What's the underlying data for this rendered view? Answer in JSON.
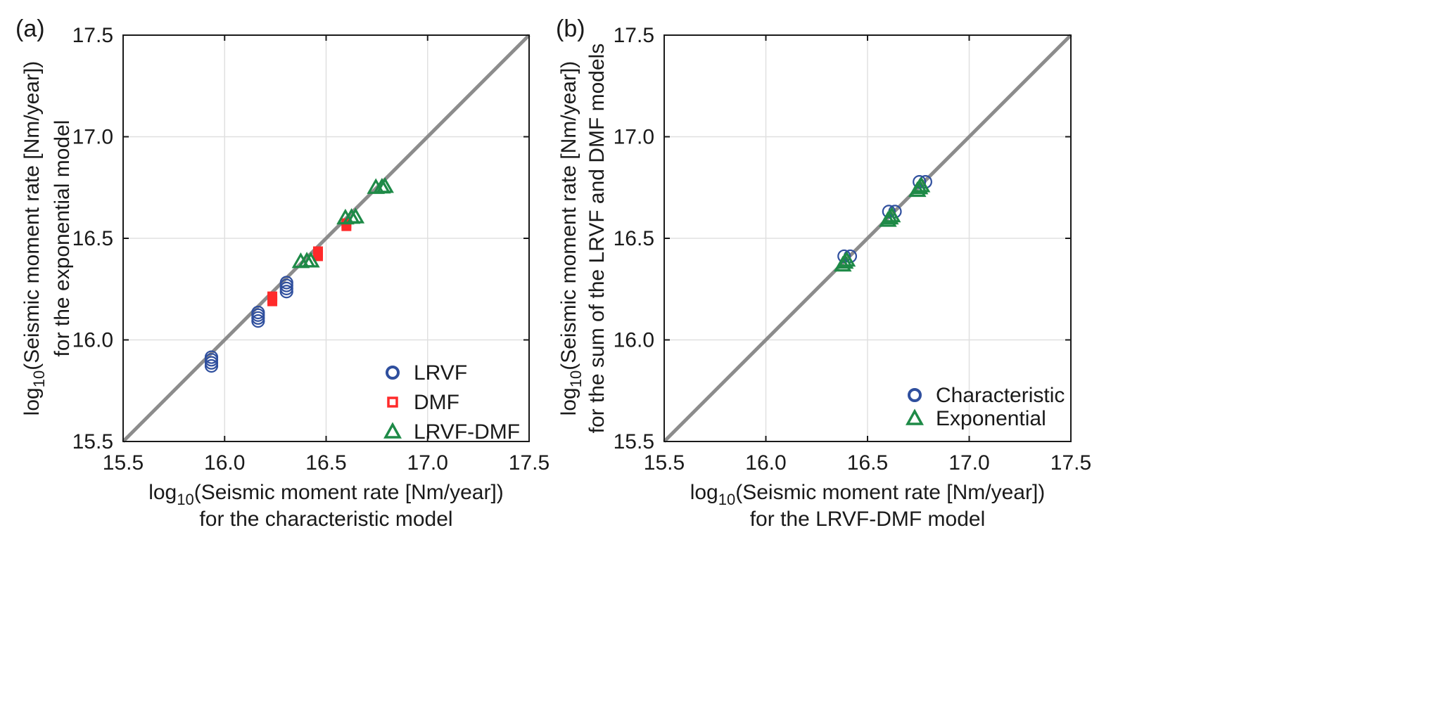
{
  "chart_data": [
    {
      "type": "scatter",
      "panel_label": "(a)",
      "title": "",
      "xlabel_line1": "log10(Seismic moment rate [Nm/year])",
      "xlabel_line2": "for the characteristic model",
      "ylabel_line1": "log10(Seismic moment rate [Nm/year])",
      "ylabel_line2": "for the exponential model",
      "xlim": [
        15.5,
        17.5
      ],
      "ylim": [
        15.5,
        17.5
      ],
      "xticks": [
        "15.5",
        "16.0",
        "16.5",
        "17.0",
        "17.5"
      ],
      "yticks": [
        "15.5",
        "16.0",
        "16.5",
        "17.0",
        "17.5"
      ],
      "grid": true,
      "reference_line": "y = x",
      "legend_position": "bottom-right",
      "series": [
        {
          "name": "LRVF",
          "marker": "circle",
          "color": "#2f4f9e",
          "points": [
            [
              15.935,
              15.872
            ],
            [
              15.935,
              15.887
            ],
            [
              15.935,
              15.902
            ],
            [
              15.935,
              15.915
            ],
            [
              16.165,
              16.093
            ],
            [
              16.165,
              16.108
            ],
            [
              16.165,
              16.122
            ],
            [
              16.165,
              16.135
            ],
            [
              16.305,
              16.238
            ],
            [
              16.305,
              16.253
            ],
            [
              16.305,
              16.268
            ],
            [
              16.305,
              16.282
            ]
          ]
        },
        {
          "name": "DMF",
          "marker": "square",
          "color": "#ff2a2a",
          "points": [
            [
              16.235,
              16.19
            ],
            [
              16.235,
              16.202
            ],
            [
              16.235,
              16.214
            ],
            [
              16.46,
              16.412
            ],
            [
              16.46,
              16.424
            ],
            [
              16.46,
              16.436
            ],
            [
              16.6,
              16.56
            ],
            [
              16.6,
              16.574
            ]
          ]
        },
        {
          "name": "LRVF-DMF",
          "marker": "triangle",
          "color": "#1e8a47",
          "points": [
            [
              16.375,
              16.385
            ],
            [
              16.405,
              16.388
            ],
            [
              16.425,
              16.388
            ],
            [
              16.595,
              16.6
            ],
            [
              16.625,
              16.603
            ],
            [
              16.645,
              16.605
            ],
            [
              16.745,
              16.75
            ],
            [
              16.775,
              16.752
            ],
            [
              16.79,
              16.755
            ]
          ]
        }
      ]
    },
    {
      "type": "scatter",
      "panel_label": "(b)",
      "title": "",
      "xlabel_line1": "log10(Seismic moment rate [Nm/year])",
      "xlabel_line2": "for the LRVF-DMF model",
      "ylabel_line1": "log10(Seismic moment rate [Nm/year])",
      "ylabel_line2": "for the sum of the LRVF and DMF models",
      "xlim": [
        15.5,
        17.5
      ],
      "ylim": [
        15.5,
        17.5
      ],
      "xticks": [
        "15.5",
        "16.0",
        "16.5",
        "17.0",
        "17.5"
      ],
      "yticks": [
        "15.5",
        "16.0",
        "16.5",
        "17.0",
        "17.5"
      ],
      "grid": true,
      "reference_line": "y = x",
      "legend_position": "bottom-right",
      "series": [
        {
          "name": "Characteristic",
          "marker": "circle",
          "color": "#2f4f9e",
          "points": [
            [
              16.385,
              16.412
            ],
            [
              16.415,
              16.412
            ],
            [
              16.605,
              16.632
            ],
            [
              16.635,
              16.632
            ],
            [
              16.755,
              16.778
            ],
            [
              16.785,
              16.778
            ]
          ]
        },
        {
          "name": "Exponential",
          "marker": "triangle",
          "color": "#1e8a47",
          "points": [
            [
              16.378,
              16.368
            ],
            [
              16.388,
              16.382
            ],
            [
              16.398,
              16.392
            ],
            [
              16.6,
              16.588
            ],
            [
              16.61,
              16.6
            ],
            [
              16.62,
              16.61
            ],
            [
              16.745,
              16.735
            ],
            [
              16.755,
              16.748
            ],
            [
              16.765,
              16.758
            ]
          ]
        }
      ]
    }
  ]
}
